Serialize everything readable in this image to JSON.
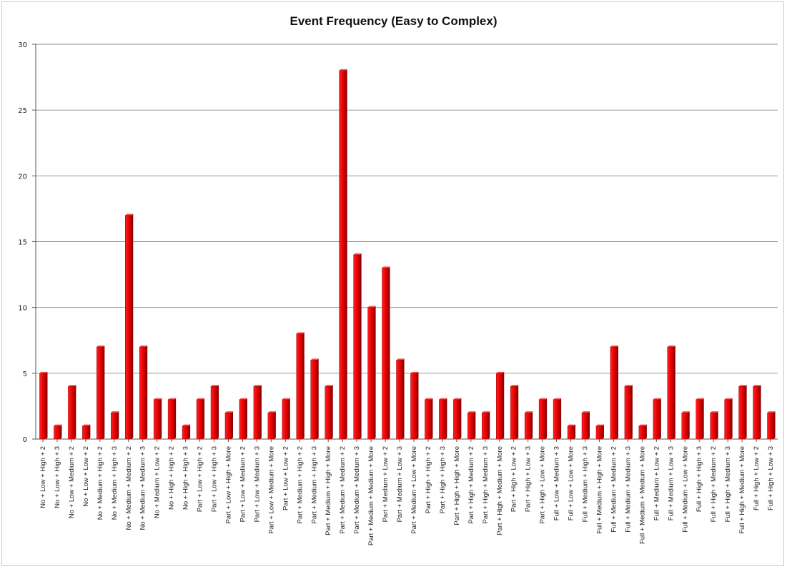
{
  "chart_data": {
    "type": "bar",
    "title": "Event Frequency (Easy to Complex)",
    "xlabel": "",
    "ylabel": "",
    "ylim": [
      0,
      30
    ],
    "yticks": [
      0,
      5,
      10,
      15,
      20,
      25,
      30
    ],
    "grid": true,
    "bar_color": "#e10000",
    "categories": [
      "No + Low + High + 2",
      "No + Low + High + 3",
      "No + Low + Medium + 2",
      "No + Low + Low + 2",
      "No + Medium + High + 2",
      "No + Medium + High + 3",
      "No + Medium + Medium + 2",
      "No + Medium + Medium + 3",
      "No + Medium + Low + 2",
      "No + High + High + 2",
      "No + High + High + 3",
      "Part + Low + High + 2",
      "Part + Low + High + 3",
      "Part + Low + High + More",
      "Part + Low + Medium + 2",
      "Part + Low + Medium + 3",
      "Part + Low + Medium + More",
      "Part + Low + Low + 2",
      "Part + Medium + High + 2",
      "Part + Medium + High + 3",
      "Part + Medium + High + More",
      "Part + Medium + Medium + 2",
      "Part + Medium + Medium + 3",
      "Part + Medium + Medium + More",
      "Part + Medium + Low + 2",
      "Part + Medium + Low + 3",
      "Part + Medium + Low + More",
      "Part + High + High + 2",
      "Part + High + High + 3",
      "Part + High + High + More",
      "Part + High + Medium + 2",
      "Part + High + Medium + 3",
      "Part + High + Medium + More",
      "Part + High + Low + 2",
      "Part + High + Low + 3",
      "Part + High + Low + More",
      "Full + Low + Medium + 3",
      "Full + Low + Low + More",
      "Full + Medium + High + 3",
      "Full + Medium + High + More",
      "Full + Medium + Medium + 2",
      "Full + Medium + Medium + 3",
      "Full + Medium + Medium + More",
      "Full + Medium + Low + 2",
      "Full + Medium + Low + 3",
      "Full + Medium + Low + More",
      "Full + High + High + 3",
      "Full + High + Medium + 2",
      "Full + High + Medium + 3",
      "Full + High + Medium + More",
      "Full + High + Low + 2",
      "Full + High + Low + 3"
    ],
    "values": [
      5,
      1,
      4,
      1,
      7,
      2,
      17,
      7,
      3,
      3,
      1,
      3,
      4,
      2,
      3,
      4,
      2,
      3,
      8,
      6,
      4,
      28,
      14,
      10,
      13,
      6,
      5,
      3,
      3,
      3,
      2,
      2,
      5,
      4,
      2,
      3,
      3,
      1,
      2,
      1,
      7,
      4,
      1,
      3,
      7,
      2,
      3,
      2,
      3,
      4,
      4,
      2
    ]
  }
}
